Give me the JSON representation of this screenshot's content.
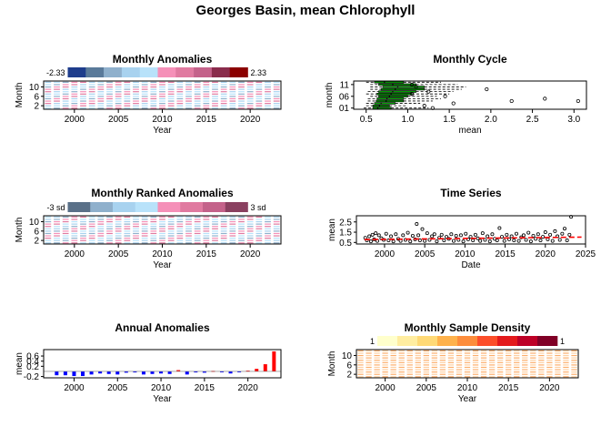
{
  "page": {
    "title": "Georges Basin, mean Chlorophyll"
  },
  "chart_data": [
    {
      "id": "monthly_anomalies",
      "type": "heatmap",
      "title": "Monthly Anomalies",
      "xlabel": "Year",
      "ylabel": "Month",
      "xlim": [
        1996.5,
        2023.5
      ],
      "ylim": [
        0.5,
        12.5
      ],
      "x_ticks": [
        2000,
        2005,
        2010,
        2015,
        2020
      ],
      "y_ticks": [
        2,
        6,
        10
      ],
      "legend": {
        "placement": "top",
        "min_label": "-2.33",
        "max_label": "2.33",
        "colors": [
          "#1e3d8c",
          "#5a7a9a",
          "#8fb0cc",
          "#a8d2ef",
          "#b8e2fa",
          "#f590b8",
          "#e07aa0",
          "#c4628a",
          "#8a2c4c",
          "#8b0000"
        ]
      },
      "cell_colors": [
        "#a8d2ef",
        "#f590b8",
        "#b8e2fa",
        "#e07aa0",
        "#8fb0cc"
      ]
    },
    {
      "id": "monthly_cycle",
      "type": "boxplot",
      "title": "Monthly Cycle",
      "xlabel": "mean",
      "ylabel": "month",
      "xlim": [
        0.35,
        3.15
      ],
      "ylim": [
        0.5,
        12.5
      ],
      "x_ticks": [
        "0.5",
        "1.0",
        "1.5",
        "2.0",
        "2.5",
        "3.0"
      ],
      "y_ticks": [
        "01",
        "06",
        "11"
      ],
      "box_color": "#00a000",
      "boxes": [
        {
          "month": 1,
          "q1": 0.58,
          "median": 0.64,
          "q3": 0.8,
          "wlo": 0.47,
          "whi": 1.25
        },
        {
          "month": 2,
          "q1": 0.58,
          "median": 0.66,
          "q3": 0.78,
          "wlo": 0.5,
          "whi": 1.0
        },
        {
          "month": 3,
          "q1": 0.6,
          "median": 0.68,
          "q3": 0.85,
          "wlo": 0.5,
          "whi": 1.15
        },
        {
          "month": 4,
          "q1": 0.62,
          "median": 0.74,
          "q3": 0.95,
          "wlo": 0.52,
          "whi": 1.3
        },
        {
          "month": 5,
          "q1": 0.63,
          "median": 0.75,
          "q3": 0.95,
          "wlo": 0.52,
          "whi": 1.4
        },
        {
          "month": 6,
          "q1": 0.65,
          "median": 0.78,
          "q3": 1.0,
          "wlo": 0.55,
          "whi": 1.35
        },
        {
          "month": 7,
          "q1": 0.63,
          "median": 0.8,
          "q3": 1.05,
          "wlo": 0.5,
          "whi": 1.5
        },
        {
          "month": 8,
          "q1": 0.65,
          "median": 0.82,
          "q3": 1.1,
          "wlo": 0.52,
          "whi": 1.55
        },
        {
          "month": 9,
          "q1": 0.68,
          "median": 0.85,
          "q3": 1.2,
          "wlo": 0.55,
          "whi": 1.65
        },
        {
          "month": 10,
          "q1": 0.7,
          "median": 0.88,
          "q3": 1.2,
          "wlo": 0.55,
          "whi": 1.7
        },
        {
          "month": 11,
          "q1": 0.65,
          "median": 0.82,
          "q3": 1.1,
          "wlo": 0.55,
          "whi": 1.6
        },
        {
          "month": 12,
          "q1": 0.6,
          "median": 0.72,
          "q3": 0.95,
          "wlo": 0.5,
          "whi": 1.4
        }
      ],
      "outliers": [
        {
          "month": 1,
          "value": 1.3
        },
        {
          "month": 2,
          "value": 1.2
        },
        {
          "month": 3,
          "value": 1.55
        },
        {
          "month": 4,
          "value": 2.25
        },
        {
          "month": 5,
          "value": 2.65
        },
        {
          "month": 4,
          "value": 3.05
        },
        {
          "month": 6,
          "value": 1.45
        },
        {
          "month": 7,
          "value": 1.05
        },
        {
          "month": 9,
          "value": 1.95
        },
        {
          "month": 10,
          "value": 1.1
        },
        {
          "month": 8,
          "value": 1.25
        },
        {
          "month": 11,
          "value": 1.05
        }
      ]
    },
    {
      "id": "monthly_ranked_anomalies",
      "type": "heatmap",
      "title": "Monthly Ranked Anomalies",
      "xlabel": "Year",
      "ylabel": "Month",
      "xlim": [
        1996.5,
        2023.5
      ],
      "ylim": [
        0.5,
        12.5
      ],
      "x_ticks": [
        2000,
        2005,
        2010,
        2015,
        2020
      ],
      "y_ticks": [
        2,
        6,
        10
      ],
      "legend": {
        "placement": "top",
        "min_label": "-3 sd",
        "max_label": "3 sd",
        "colors": [
          "#5a7088",
          "#8fb0cc",
          "#a8d2ef",
          "#b8e2fa",
          "#f590b8",
          "#e07aa0",
          "#c4628a",
          "#8a4060"
        ]
      },
      "cell_colors": [
        "#b8e2fa",
        "#f590b8",
        "#a8d2ef",
        "#e07aa0",
        "#8fb0cc"
      ]
    },
    {
      "id": "time_series",
      "type": "scatter",
      "title": "Time Series",
      "xlabel": "Date",
      "ylabel": "mean",
      "xlim": [
        1996.5,
        2025
      ],
      "ylim": [
        0.35,
        3.1
      ],
      "x_ticks": [
        2000,
        2005,
        2010,
        2015,
        2020,
        2025
      ],
      "y_ticks": [
        "0.5",
        "1.5",
        "2.5"
      ],
      "trend": {
        "color": "#ff0000",
        "x": [
          1997.5,
          2024.5
        ],
        "y": [
          0.78,
          1.02
        ]
      },
      "x": [
        1997.6,
        1997.8,
        1998.1,
        1998.3,
        1998.5,
        1998.7,
        1998.9,
        1999.1,
        1999.3,
        1999.6,
        1999.9,
        2000.2,
        2000.5,
        2000.8,
        2001.1,
        2001.4,
        2001.7,
        2002.0,
        2002.3,
        2002.6,
        2002.9,
        2003.2,
        2003.5,
        2003.8,
        2004.0,
        2004.2,
        2004.4,
        2004.7,
        2005.0,
        2005.3,
        2005.6,
        2005.9,
        2006.2,
        2006.5,
        2006.8,
        2007.1,
        2007.4,
        2007.7,
        2008.0,
        2008.3,
        2008.6,
        2008.9,
        2009.2,
        2009.5,
        2009.8,
        2010.1,
        2010.4,
        2010.7,
        2011.0,
        2011.3,
        2011.6,
        2011.9,
        2012.2,
        2012.5,
        2012.8,
        2013.1,
        2013.4,
        2013.7,
        2014.0,
        2014.3,
        2014.6,
        2014.9,
        2015.2,
        2015.5,
        2015.8,
        2016.1,
        2016.4,
        2016.7,
        2017.0,
        2017.3,
        2017.6,
        2017.9,
        2018.2,
        2018.5,
        2018.8,
        2019.1,
        2019.4,
        2019.7,
        2020.0,
        2020.3,
        2020.6,
        2020.9,
        2021.2,
        2021.5,
        2021.8,
        2022.1,
        2022.4,
        2022.7,
        2023.0,
        2023.2
      ],
      "y": [
        0.95,
        0.7,
        1.1,
        0.6,
        1.25,
        0.8,
        1.4,
        0.65,
        1.2,
        0.9,
        0.75,
        1.35,
        0.7,
        1.1,
        0.6,
        1.3,
        0.85,
        0.65,
        1.2,
        0.75,
        1.45,
        0.6,
        1.15,
        0.8,
        2.3,
        1.2,
        0.7,
        1.8,
        0.65,
        1.4,
        0.75,
        1.1,
        1.3,
        0.6,
        0.95,
        1.25,
        0.7,
        1.05,
        0.85,
        1.3,
        0.65,
        1.15,
        0.75,
        1.2,
        0.6,
        1.35,
        0.8,
        1.05,
        0.7,
        1.25,
        0.9,
        0.65,
        1.4,
        0.75,
        1.1,
        0.6,
        1.3,
        0.85,
        0.7,
        1.9,
        1.05,
        0.65,
        1.25,
        0.8,
        1.1,
        0.7,
        1.35,
        0.65,
        1.0,
        1.2,
        0.75,
        1.45,
        0.6,
        1.15,
        0.85,
        1.3,
        0.7,
        1.05,
        1.5,
        0.8,
        1.25,
        0.65,
        1.6,
        1.1,
        0.75,
        1.35,
        1.85,
        0.7,
        1.25,
        3.0
      ]
    },
    {
      "id": "annual_anomalies",
      "type": "bar",
      "title": "Annual Anomalies",
      "xlabel": "Year",
      "ylabel": "mean",
      "xlim": [
        1996.5,
        2023.8
      ],
      "ylim": [
        -0.25,
        0.85
      ],
      "x_ticks": [
        2000,
        2005,
        2010,
        2015,
        2020
      ],
      "y_ticks": [
        "-0.2",
        "0.2",
        "0.4",
        "0.6"
      ],
      "positive_color": "#ff0000",
      "negative_color": "#0000ff",
      "categories": [
        1998,
        1999,
        2000,
        2001,
        2002,
        2003,
        2004,
        2005,
        2006,
        2007,
        2008,
        2009,
        2010,
        2011,
        2012,
        2013,
        2014,
        2015,
        2016,
        2017,
        2018,
        2019,
        2020,
        2021,
        2022,
        2023
      ],
      "values": [
        -0.15,
        -0.15,
        -0.18,
        -0.18,
        -0.12,
        -0.08,
        -0.1,
        -0.12,
        -0.05,
        -0.04,
        -0.12,
        -0.1,
        -0.08,
        -0.1,
        0.05,
        -0.12,
        -0.04,
        -0.05,
        0.02,
        -0.03,
        -0.08,
        -0.03,
        0.03,
        0.1,
        0.28,
        0.78
      ]
    },
    {
      "id": "monthly_sample_density",
      "type": "heatmap",
      "title": "Monthly Sample Density",
      "xlabel": "Year",
      "ylabel": "Month",
      "xlim": [
        1996.5,
        2023.5
      ],
      "ylim": [
        0.5,
        12.5
      ],
      "x_ticks": [
        2000,
        2005,
        2010,
        2015,
        2020
      ],
      "y_ticks": [
        2,
        6,
        10
      ],
      "legend": {
        "placement": "top",
        "min_label": "1",
        "max_label": "1",
        "colors": [
          "#ffffcc",
          "#ffeda0",
          "#fed976",
          "#feb24c",
          "#fd8d3c",
          "#fc4e2a",
          "#e31a1c",
          "#bd0026",
          "#800026"
        ]
      },
      "cell_colors": [
        "#fdd0a2",
        "#fdae6b"
      ]
    }
  ]
}
